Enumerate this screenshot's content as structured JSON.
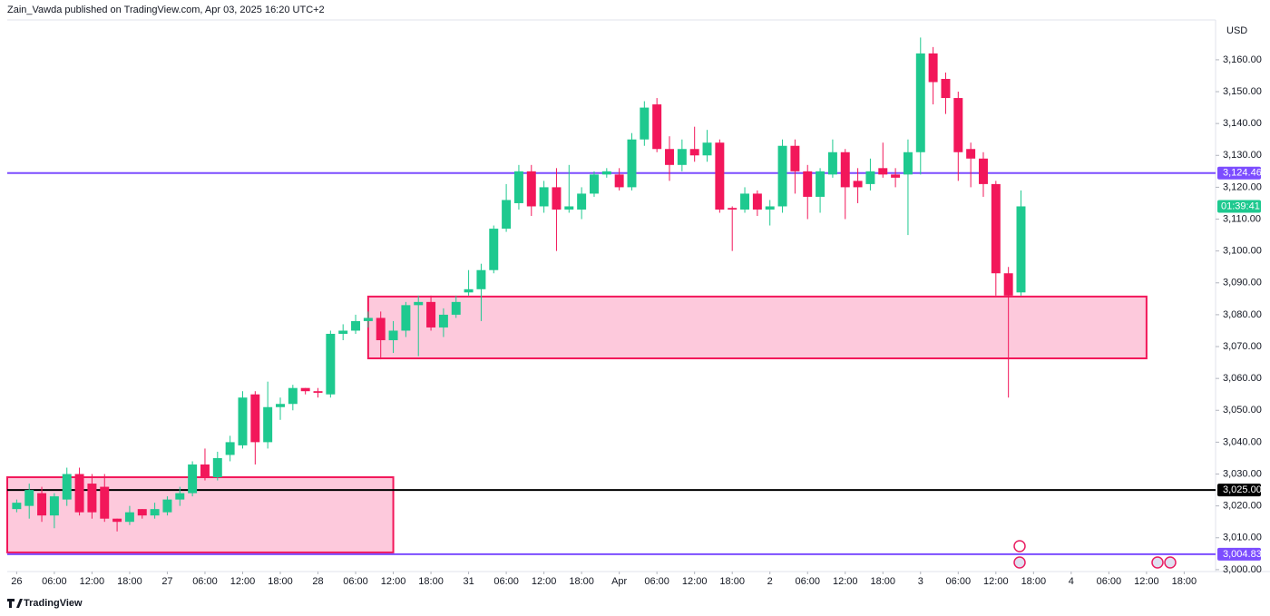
{
  "header": "Zain_Vawda published on TradingView.com, Apr 03, 2025 16:20 UTC+2",
  "footer": "TradingView",
  "chart_data": {
    "type": "candlestick",
    "currency": "USD",
    "up_color": "#1ec98f",
    "down_color": "#f2175a",
    "grid": false,
    "x": [
      0,
      2,
      4,
      6,
      8,
      10,
      12,
      14,
      16,
      18,
      20,
      22,
      24,
      26,
      28,
      30,
      32,
      34,
      36,
      38,
      40,
      42,
      44,
      46,
      48,
      50,
      52,
      54,
      56,
      58,
      60,
      62,
      64,
      66,
      68,
      70,
      72,
      74,
      76,
      78,
      80,
      82,
      84,
      86,
      88,
      90,
      92,
      94,
      96,
      98,
      100,
      102,
      104,
      106,
      108,
      110,
      112,
      114,
      116,
      118,
      120,
      122,
      124,
      126,
      128,
      130,
      132,
      134,
      136,
      138,
      140,
      142,
      144,
      146,
      148,
      150,
      152,
      154,
      156,
      158,
      160
    ],
    "open": [
      3019,
      3020,
      3024,
      3017,
      3022,
      3030,
      3027,
      3026,
      3016,
      3015,
      3019,
      3017,
      3018,
      3022,
      3024,
      3033,
      3029,
      3036,
      3039,
      3055,
      3040,
      3051,
      3052,
      3057,
      3056,
      3055,
      3074,
      3075,
      3078,
      3079,
      3072,
      3075,
      3083,
      3084,
      3076,
      3080,
      3087,
      3088,
      3094,
      3107,
      3115,
      3125,
      3114,
      3120,
      3113,
      3113,
      3118,
      3124,
      3124,
      3120,
      3135,
      3146,
      3132,
      3127,
      3132,
      3130,
      3134,
      3113.5,
      3113,
      3118,
      3113,
      3114,
      3133,
      3125,
      3117,
      3124,
      3131,
      3122,
      3121,
      3126,
      3124,
      3124,
      3131,
      3162,
      3154,
      3148,
      3132,
      3129,
      3121,
      3093,
      3087
    ],
    "high": [
      3022,
      3027,
      3026,
      3024,
      3032,
      3032,
      3030,
      3030,
      3016,
      3020,
      3019,
      3021,
      3023,
      3026,
      3034,
      3038,
      3037,
      3042,
      3056,
      3056,
      3059,
      3054,
      3058,
      3057,
      3057,
      3075,
      3077,
      3080,
      3081,
      3081,
      3078,
      3084,
      3086,
      3086,
      3082,
      3086,
      3094,
      3096,
      3108,
      3121,
      3127,
      3127,
      3122,
      3126,
      3127,
      3120,
      3125,
      3126,
      3126,
      3137,
      3147,
      3148,
      3136,
      3135,
      3139,
      3138,
      3135,
      3114,
      3120,
      3119,
      3116,
      3135,
      3135,
      3127,
      3126,
      3135,
      3132,
      3126,
      3129,
      3134,
      3126,
      3135,
      3167,
      3164,
      3156,
      3150,
      3134,
      3131,
      3122,
      3095,
      3119
    ],
    "low": [
      3018,
      3016,
      3015,
      3013,
      3020,
      3017,
      3016,
      3015,
      3012,
      3014,
      3016,
      3016,
      3017,
      3020,
      3023,
      3028,
      3028,
      3034,
      3038,
      3033,
      3038,
      3047,
      3050,
      3055,
      3054,
      3054,
      3072,
      3074,
      3076,
      3066,
      3068,
      3073,
      3067,
      3075,
      3073,
      3079,
      3086,
      3078,
      3093,
      3106,
      3113,
      3111,
      3112,
      3100,
      3112,
      3110,
      3117,
      3123,
      3119,
      3119,
      3133,
      3131,
      3122,
      3125,
      3128,
      3128,
      3112,
      3100,
      3112,
      3111,
      3108,
      3112,
      3118,
      3110,
      3112,
      3123,
      3110,
      3115,
      3119,
      3123,
      3120,
      3105,
      3124,
      3146,
      3143,
      3122,
      3120,
      3117,
      3086,
      3054,
      3086
    ],
    "close": [
      3021,
      3025,
      3017,
      3023,
      3030,
      3018,
      3018,
      3016,
      3015,
      3018,
      3017,
      3019,
      3022,
      3024,
      3033,
      3029,
      3035,
      3040,
      3054,
      3040,
      3051,
      3052,
      3057,
      3056,
      3055.5,
      3074,
      3075,
      3078,
      3079,
      3072,
      3075,
      3083,
      3084,
      3076,
      3080,
      3084,
      3088,
      3094,
      3107,
      3116,
      3125,
      3114,
      3120,
      3113,
      3114,
      3118,
      3124,
      3125,
      3120,
      3135,
      3145,
      3132,
      3127,
      3132,
      3130,
      3134,
      3113,
      3113,
      3118,
      3113,
      3114,
      3133,
      3125,
      3117,
      3125,
      3131,
      3120,
      3120,
      3125,
      3124,
      3123,
      3131,
      3162,
      3153,
      3148,
      3131,
      3129,
      3121,
      3093,
      3086,
      3114
    ],
    "xlim": [
      -1.5,
      191
    ],
    "xticks": [
      {
        "value": 0,
        "label": "26"
      },
      {
        "value": 6,
        "label": "06:00"
      },
      {
        "value": 12,
        "label": "12:00"
      },
      {
        "value": 18,
        "label": "18:00"
      },
      {
        "value": 24,
        "label": "27"
      },
      {
        "value": 30,
        "label": "06:00"
      },
      {
        "value": 36,
        "label": "12:00"
      },
      {
        "value": 42,
        "label": "18:00"
      },
      {
        "value": 48,
        "label": "28"
      },
      {
        "value": 54,
        "label": "06:00"
      },
      {
        "value": 60,
        "label": "12:00"
      },
      {
        "value": 66,
        "label": "18:00"
      },
      {
        "value": 72,
        "label": "31"
      },
      {
        "value": 78,
        "label": "06:00"
      },
      {
        "value": 84,
        "label": "12:00"
      },
      {
        "value": 90,
        "label": "18:00"
      },
      {
        "value": 96,
        "label": "Apr"
      },
      {
        "value": 102,
        "label": "06:00"
      },
      {
        "value": 108,
        "label": "12:00"
      },
      {
        "value": 114,
        "label": "18:00"
      },
      {
        "value": 120,
        "label": "2"
      },
      {
        "value": 126,
        "label": "06:00"
      },
      {
        "value": 132,
        "label": "12:00"
      },
      {
        "value": 138,
        "label": "18:00"
      },
      {
        "value": 144,
        "label": "3"
      },
      {
        "value": 150,
        "label": "06:00"
      },
      {
        "value": 156,
        "label": "12:00"
      },
      {
        "value": 162,
        "label": "18:00"
      },
      {
        "value": 168,
        "label": "4"
      },
      {
        "value": 174,
        "label": "06:00"
      },
      {
        "value": 180,
        "label": "12:00"
      },
      {
        "value": 186,
        "label": "18:00"
      }
    ],
    "ylim": [
      2999.4,
      3172.5
    ],
    "yticks": [
      {
        "value": 3000,
        "label": "3,000.00"
      },
      {
        "value": 3010,
        "label": "3,010.00"
      },
      {
        "value": 3020,
        "label": "3,020.00"
      },
      {
        "value": 3030,
        "label": "3,030.00"
      },
      {
        "value": 3040,
        "label": "3,040.00"
      },
      {
        "value": 3050,
        "label": "3,050.00"
      },
      {
        "value": 3060,
        "label": "3,060.00"
      },
      {
        "value": 3070,
        "label": "3,070.00"
      },
      {
        "value": 3080,
        "label": "3,080.00"
      },
      {
        "value": 3090,
        "label": "3,090.00"
      },
      {
        "value": 3100,
        "label": "3,100.00"
      },
      {
        "value": 3110,
        "label": "3,110.00"
      },
      {
        "value": 3120,
        "label": "3,120.00"
      },
      {
        "value": 3130,
        "label": "3,130.00"
      },
      {
        "value": 3140,
        "label": "3,140.00"
      },
      {
        "value": 3150,
        "label": "3,150.00"
      },
      {
        "value": 3160,
        "label": "3,160.00"
      }
    ],
    "hlines": [
      {
        "value": 3124.46,
        "label": "3,124.46",
        "color": "#7c4dff"
      },
      {
        "value": 3025,
        "label": "3,025.00",
        "color": "#000000"
      },
      {
        "value": 3004.83,
        "label": "3,004.83",
        "color": "#7c4dff"
      }
    ],
    "zones": [
      {
        "start": -1.5,
        "end": 60,
        "low": 3005.4,
        "high": 3029,
        "fill": "#fdc9dc",
        "border": "#f2175a"
      },
      {
        "start": 56,
        "end": 180,
        "low": 3066.3,
        "high": 3085.7,
        "fill": "#fdc9dc",
        "border": "#f2175a"
      }
    ],
    "timer": "01:39:41"
  }
}
